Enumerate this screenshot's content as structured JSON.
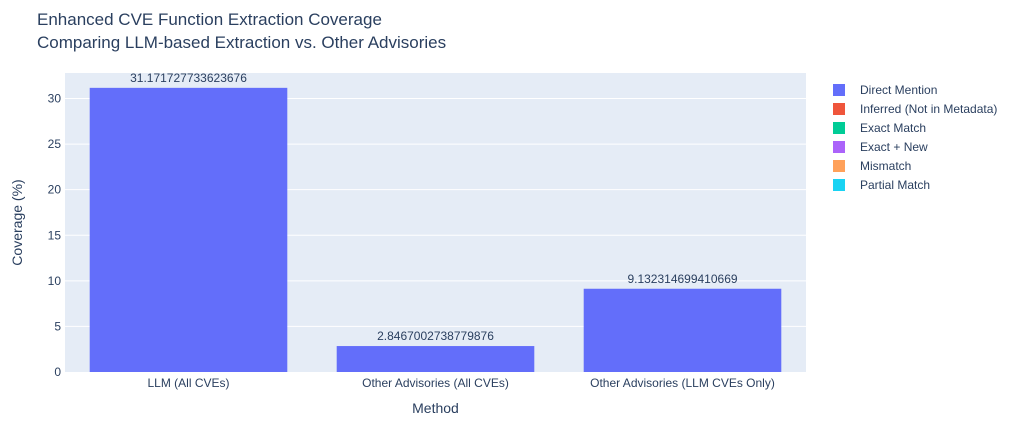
{
  "chart_data": {
    "type": "bar",
    "title": "Enhanced CVE Function Extraction Coverage",
    "subtitle": "Comparing LLM-based Extraction vs. Other Advisories",
    "xlabel": "Method",
    "ylabel": "Coverage (%)",
    "ylim": [
      0,
      32.8
    ],
    "yticks": [
      0,
      5,
      10,
      15,
      20,
      25,
      30
    ],
    "categories": [
      "LLM (All CVEs)",
      "Other Advisories (All CVEs)",
      "Other Advisories (LLM CVEs Only)"
    ],
    "series": [
      {
        "name": "Direct Mention",
        "color": "#636efa",
        "values": [
          31.171727733623676,
          2.8467002738779876,
          9.132314699410669
        ],
        "labels": [
          "31.171727733623676",
          "2.8467002738779876",
          "9.132314699410669"
        ]
      },
      {
        "name": "Inferred (Not in Metadata)",
        "color": "#ef553b",
        "values": [
          0,
          0,
          0
        ]
      },
      {
        "name": "Exact Match",
        "color": "#00cc96",
        "values": [
          0,
          0,
          0
        ]
      },
      {
        "name": "Exact + New",
        "color": "#ab63fa",
        "values": [
          0,
          0,
          0
        ]
      },
      {
        "name": "Mismatch",
        "color": "#ffa15a",
        "values": [
          0,
          0,
          0
        ]
      },
      {
        "name": "Partial Match",
        "color": "#19d3f3",
        "values": [
          0,
          0,
          0
        ]
      }
    ],
    "grid": true,
    "legend_position": "top-right",
    "plot_background": "#e5ecf6"
  }
}
